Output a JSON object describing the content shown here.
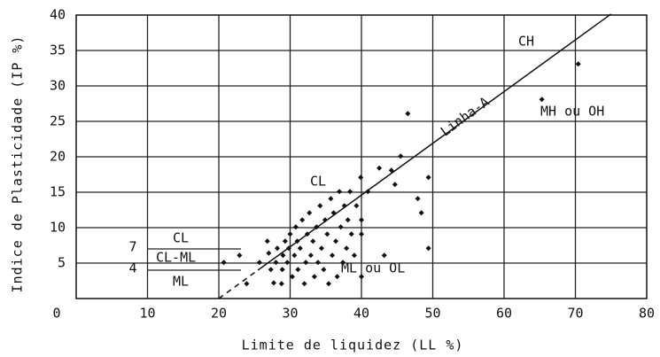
{
  "chart_data": {
    "type": "scatter",
    "x_label": "Limite de liquidez (LL %)",
    "y_label": "Indice de Plasticidade (IP %)",
    "xlim": [
      0,
      80
    ],
    "ylim": [
      0,
      40
    ],
    "xticks": [
      0,
      10,
      20,
      30,
      40,
      50,
      60,
      70,
      80
    ],
    "yticks": [
      5,
      10,
      15,
      20,
      25,
      30,
      35,
      40
    ],
    "grid": true,
    "color": "#111111",
    "zone_ticks": [
      7,
      4
    ],
    "zone_labels": [
      "CL",
      "CL-ML",
      "ML"
    ],
    "region_labels": [
      "CH",
      "MH ou OH",
      "CL",
      "ML ou OL"
    ],
    "a_line": {
      "label": "Linha-A",
      "x": [
        20,
        75
      ],
      "y": [
        0,
        40.15
      ]
    },
    "x": [
      20.7,
      22.9,
      23.9,
      25.7,
      26.8,
      27.0,
      27.3,
      27.7,
      28.0,
      28.2,
      28.8,
      28.9,
      29.0,
      29.3,
      29.6,
      29.8,
      30.0,
      30.3,
      30.6,
      30.8,
      31.0,
      31.1,
      31.4,
      31.7,
      32.0,
      32.2,
      32.4,
      32.7,
      32.9,
      33.2,
      33.4,
      33.7,
      33.9,
      34.2,
      34.4,
      34.7,
      34.9,
      35.2,
      35.4,
      35.7,
      35.9,
      36.1,
      36.4,
      36.6,
      36.9,
      37.1,
      37.4,
      37.6,
      37.9,
      38.1,
      38.4,
      38.6,
      39.0,
      39.3,
      39.9,
      40.0,
      40.0,
      40.0,
      40.9,
      42.5,
      43.2,
      44.2,
      44.7,
      45.5,
      46.5,
      47.9,
      48.4,
      49.4,
      49.4,
      65.3,
      70.4
    ],
    "values": [
      5.1,
      6.1,
      2.1,
      5.1,
      8.1,
      6.4,
      4.1,
      2.2,
      5.1,
      7.1,
      2.1,
      4.1,
      6.1,
      8.1,
      5.1,
      7.1,
      9.1,
      3.1,
      6.1,
      10.1,
      8.1,
      4.1,
      7.1,
      11.1,
      2.1,
      5.1,
      9.1,
      12.1,
      6.1,
      8.1,
      3.1,
      10.1,
      5.1,
      13.1,
      7.1,
      4.1,
      11.1,
      9.1,
      2.1,
      14.1,
      6.1,
      12.1,
      8.1,
      3.1,
      15.1,
      10.1,
      5.1,
      13.1,
      7.1,
      11.1,
      15.1,
      9.1,
      6.1,
      13.1,
      17.1,
      11.1,
      9.1,
      3.1,
      15.1,
      18.4,
      6.1,
      18.1,
      16.1,
      20.1,
      26.1,
      14.1,
      12.1,
      17.1,
      7.1,
      28.1,
      33.1
    ]
  }
}
